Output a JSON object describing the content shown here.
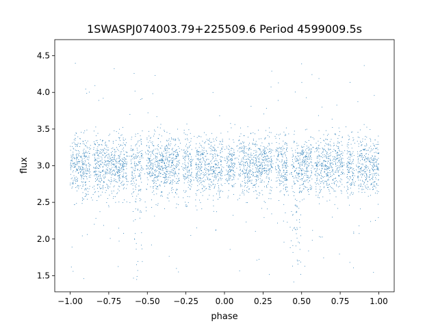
{
  "chart_data": {
    "type": "scatter",
    "title": "1SWASPJ074003.79+225509.6 Period 4599009.5s",
    "xlabel": "phase",
    "ylabel": "flux",
    "xlim": [
      -1.1,
      1.1
    ],
    "ylim": [
      1.28,
      4.72
    ],
    "xticks": [
      -1.0,
      -0.75,
      -0.5,
      -0.25,
      0.0,
      0.25,
      0.5,
      0.75,
      1.0
    ],
    "xtick_labels": [
      "−1.00",
      "−0.75",
      "−0.50",
      "−0.25",
      "0.00",
      "0.25",
      "0.50",
      "0.75",
      "1.00"
    ],
    "yticks": [
      1.5,
      2.0,
      2.5,
      3.0,
      3.5,
      4.0,
      4.5
    ],
    "ytick_labels": [
      "1.5",
      "2.0",
      "2.5",
      "3.0",
      "3.5",
      "4.0",
      "4.5"
    ],
    "grid": false,
    "point_color": "#1f77b4",
    "series": [
      {
        "phase_range": [
          -1.0,
          1.0
        ],
        "baseline_flux": 3.0,
        "flux_spread": 0.2,
        "dense_flux_range": [
          2.6,
          3.5
        ],
        "outlier_flux_range": [
          1.45,
          4.55
        ],
        "dip_phases": [
          -0.55,
          0.45
        ],
        "dip_min_flux": 1.65,
        "observing_gap_phases": [
          -0.86,
          -0.62,
          -0.52,
          -0.28,
          -0.2,
          0.0,
          0.08,
          0.32,
          0.42,
          0.58,
          0.78,
          0.85
        ]
      }
    ]
  }
}
